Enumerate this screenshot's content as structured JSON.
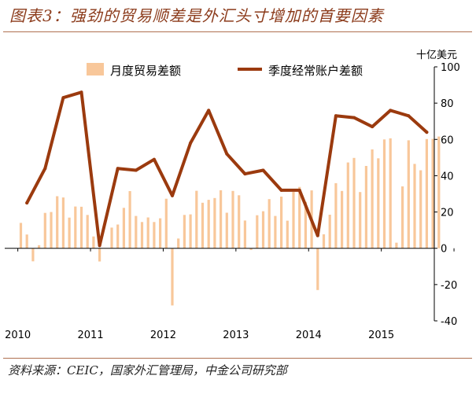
{
  "header": {
    "title": "图表3：强劲的贸易顺差是外汇头寸增加的首要因素"
  },
  "footer": {
    "source": "资料来源：CEIC，国家外汇管理局，中金公司研究部"
  },
  "colors": {
    "bars": "#F8C79A",
    "line": "#9B3A0E",
    "axis": "#000000",
    "title": "#8B3A1A"
  },
  "chart_data": {
    "type": "bar+line",
    "title": "",
    "unit_label": "十亿美元",
    "xlabel": "",
    "ylabel": "十亿美元",
    "ylim": [
      -40,
      100
    ],
    "yticks": [
      -40,
      -20,
      0,
      20,
      40,
      60,
      80,
      100
    ],
    "x_tick_labels": [
      "2010",
      "2011",
      "2012",
      "2013",
      "2014",
      "2015"
    ],
    "legend": [
      "月度贸易差额",
      "季度经常账户差额"
    ],
    "legend_position": "top",
    "grid": false,
    "bar_series": {
      "name": "月度贸易差额",
      "start": "2010-01",
      "values": [
        14,
        7.6,
        -7.2,
        1.7,
        19.5,
        20,
        28.7,
        28,
        16.9,
        23,
        22.9,
        18.4,
        6.5,
        -7.3,
        0.1,
        11.4,
        13.1,
        22.3,
        31.5,
        17.8,
        14.5,
        17,
        14.5,
        16.5,
        27.3,
        -31.5,
        5.4,
        18.4,
        18.7,
        31.7,
        25.1,
        26.7,
        27.7,
        32,
        19.6,
        31.6,
        29.2,
        15.3,
        -0.9,
        18.2,
        20.4,
        27.1,
        17.8,
        28.5,
        15.2,
        31.1,
        33.8,
        25.6,
        31.9,
        -23,
        7.7,
        18.5,
        35.9,
        31.6,
        47.3,
        49.8,
        31,
        45.4,
        54.5,
        49.6,
        60,
        60.6,
        3.1,
        34.1,
        59.5,
        46.5,
        43,
        60.2,
        60.3,
        61.6
      ]
    },
    "line_series": {
      "name": "季度经常账户差额",
      "start": "2010-Q1",
      "values": [
        25,
        44,
        83,
        86,
        1.5,
        44,
        43,
        49,
        29,
        58,
        76,
        52,
        41,
        43,
        32,
        32,
        7,
        73,
        72,
        67,
        76,
        73,
        64
      ]
    }
  }
}
